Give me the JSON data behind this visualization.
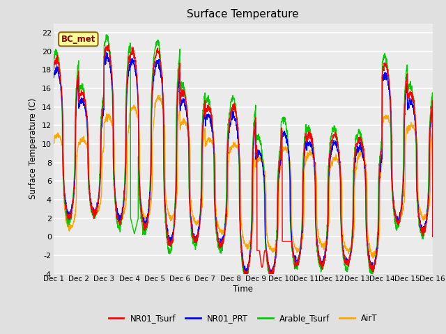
{
  "title": "Surface Temperature",
  "ylabel": "Surface Temperature (C)",
  "xlabel": "Time",
  "ylim": [
    -4,
    23
  ],
  "yticks": [
    -4,
    -2,
    0,
    2,
    4,
    6,
    8,
    10,
    12,
    14,
    16,
    18,
    20,
    22
  ],
  "xtick_labels": [
    "Dec 1",
    "Dec 2",
    "Dec 3",
    "Dec 4",
    "Dec 5",
    "Dec 6",
    "Dec 7",
    "Dec 8",
    "Dec 9",
    "Dec 10",
    "Dec 11",
    "Dec 12",
    "Dec 13",
    "Dec 14",
    "Dec 15",
    "Dec 16"
  ],
  "annotation_text": "BC_met",
  "line_colors": {
    "NR01_Tsurf": "#FF0000",
    "NR01_PRT": "#0000FF",
    "Arable_Tsurf": "#00CC00",
    "AirT": "#FFA500"
  },
  "line_width": 1.0,
  "bg_color": "#E0E0E0",
  "plot_bg_color": "#EBEBEB",
  "grid_color": "#FFFFFF",
  "n_days": 15,
  "points_per_day": 144
}
